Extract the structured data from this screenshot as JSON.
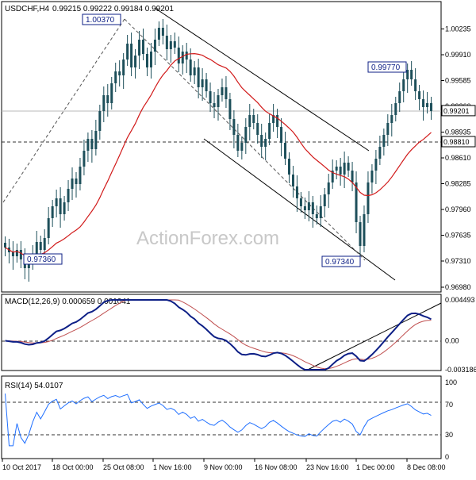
{
  "header": {
    "symbol": "USDCHF,H4",
    "ohlc_text": "0.99215 0.99222 0.99184 0.99201"
  },
  "watermark": "ActionForex.com",
  "colors": {
    "candle": "#1d4f5a",
    "sma": "#d11a1a",
    "macd_line": "#0d1f86",
    "macd_signal": "#c05050",
    "rsi_line": "#1f6fff",
    "channel": "#000000",
    "label_bg": "#ffffff",
    "label_border": "#0d1f86"
  },
  "chart_data": [
    {
      "type": "candlestick",
      "panel": "price",
      "ylim": [
        0.9698,
        1.004
      ],
      "yticks": [
        "1.00235",
        "0.99910",
        "0.99585",
        "0.99260",
        "0.98935",
        "0.98610",
        "0.98285",
        "0.97960",
        "0.97635",
        "0.97310",
        "0.96980"
      ],
      "xticks": [
        "10 Oct 2017",
        "18 Oct 00:00",
        "25 Oct 08:00",
        "1 Nov 16:00",
        "9 Nov 00:00",
        "16 Nov 08:00",
        "23 Nov 16:00",
        "1 Dec 00:00",
        "8 Dec 08:00"
      ],
      "current_price_label": "0.99201",
      "level_label": "0.98810",
      "annotations": [
        {
          "text": "1.00370",
          "price": 1.0037
        },
        {
          "text": "0.99770",
          "price": 0.9977
        },
        {
          "text": "0.97360",
          "price": 0.9736
        },
        {
          "text": "0.97340",
          "price": 0.9734
        }
      ],
      "closes": [
        0.9748,
        0.9742,
        0.9737,
        0.9745,
        0.9733,
        0.9722,
        0.9728,
        0.974,
        0.9755,
        0.9745,
        0.976,
        0.9785,
        0.98,
        0.981,
        0.979,
        0.9805,
        0.9822,
        0.9835,
        0.9828,
        0.985,
        0.987,
        0.9885,
        0.9872,
        0.9895,
        0.992,
        0.994,
        0.993,
        0.9955,
        0.997,
        0.9965,
        0.9985,
        1.0005,
        0.9975,
        0.999,
        1.001,
        0.9992,
        0.9975,
        0.9995,
        1.001,
        1.0025,
        1.0015,
        0.9998,
        1.0008,
        1.0,
        0.998,
        0.9995,
        0.9985,
        0.9965,
        0.9975,
        0.995,
        0.996,
        0.9945,
        0.993,
        0.9925,
        0.994,
        0.995,
        0.9935,
        0.991,
        0.989,
        0.987,
        0.988,
        0.99,
        0.9915,
        0.9905,
        0.989,
        0.9875,
        0.9885,
        0.9905,
        0.9915,
        0.99,
        0.988,
        0.986,
        0.984,
        0.9825,
        0.981,
        0.98,
        0.9795,
        0.9805,
        0.979,
        0.9785,
        0.98,
        0.9815,
        0.983,
        0.9845,
        0.985,
        0.984,
        0.9855,
        0.9845,
        0.983,
        0.978,
        0.975,
        0.979,
        0.983,
        0.9845,
        0.986,
        0.9875,
        0.989,
        0.9905,
        0.9915,
        0.993,
        0.9945,
        0.996,
        0.9972,
        0.996,
        0.9945,
        0.9935,
        0.9925,
        0.993,
        0.992
      ],
      "sma_period": 20
    },
    {
      "type": "line",
      "panel": "macd",
      "title": "MACD(12,26,9) 0.000659 0.001041",
      "ylim": [
        -0.00318,
        0.00449
      ],
      "yticks": [
        "0.004493",
        "0.00",
        "-0.003186"
      ]
    },
    {
      "type": "line",
      "panel": "rsi",
      "title": "RSI(14) 54.0107",
      "ylim": [
        0,
        100
      ],
      "yticks": [
        "100",
        "70",
        "30",
        "0"
      ],
      "levels": [
        70,
        30
      ]
    }
  ]
}
